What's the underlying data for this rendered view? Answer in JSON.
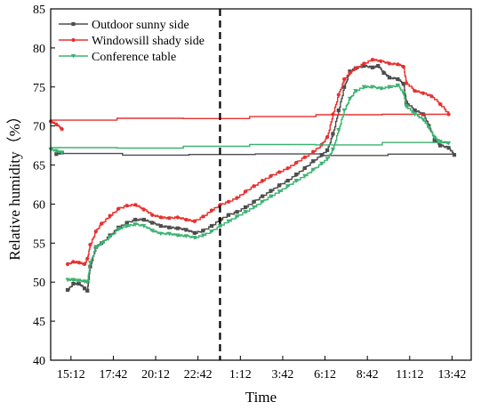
{
  "chart_data": {
    "type": "line",
    "title": "",
    "xlabel": "Time",
    "ylabel": "Relative humidity（%）",
    "ylim": [
      40,
      85
    ],
    "yticks": [
      40,
      45,
      50,
      55,
      60,
      65,
      70,
      75,
      80,
      85
    ],
    "xticks": [
      "15:12",
      "17:42",
      "20:12",
      "22:42",
      "1:12",
      "3:42",
      "6:12",
      "8:42",
      "11:12",
      "13:42"
    ],
    "x_range": [
      "14:00",
      "14:50"
    ],
    "divider_line_at": "0:00",
    "legend_position": "top-left",
    "grid": false,
    "series": [
      {
        "name": "Outdoor sunny side",
        "color": "#4d4d4d",
        "marker": "square",
        "points": [
          [
            "15:00",
            49
          ],
          [
            "15:20",
            49.8
          ],
          [
            "15:40",
            49.8
          ],
          [
            "16:00",
            49.2
          ],
          [
            "16:10",
            48.9
          ],
          [
            "16:20",
            52
          ],
          [
            "16:40",
            54.5
          ],
          [
            "17:00",
            55
          ],
          [
            "17:30",
            56
          ],
          [
            "18:00",
            57
          ],
          [
            "18:30",
            57.6
          ],
          [
            "19:00",
            58
          ],
          [
            "19:30",
            58
          ],
          [
            "20:00",
            57.6
          ],
          [
            "20:30",
            57.2
          ],
          [
            "21:00",
            57
          ],
          [
            "21:30",
            56.9
          ],
          [
            "22:00",
            56.7
          ],
          [
            "22:30",
            56.3
          ],
          [
            "23:00",
            56.6
          ],
          [
            "23:30",
            57.2
          ],
          [
            "0:00",
            58
          ],
          [
            "0:30",
            58.6
          ],
          [
            "1:00",
            59
          ],
          [
            "1:30",
            59.6
          ],
          [
            "2:00",
            60.3
          ],
          [
            "2:30",
            61
          ],
          [
            "3:00",
            61.7
          ],
          [
            "3:30",
            62.4
          ],
          [
            "4:00",
            63
          ],
          [
            "4:30",
            63.8
          ],
          [
            "5:00",
            64.6
          ],
          [
            "5:30",
            65.5
          ],
          [
            "6:00",
            66.3
          ],
          [
            "6:20",
            66.9
          ],
          [
            "6:40",
            69
          ],
          [
            "7:00",
            72
          ],
          [
            "7:20",
            75
          ],
          [
            "7:40",
            77
          ],
          [
            "8:00",
            77.4
          ],
          [
            "8:30",
            77.7
          ],
          [
            "9:00",
            77.5
          ],
          [
            "9:20",
            77.7
          ],
          [
            "9:40",
            76.8
          ],
          [
            "10:00",
            76.2
          ],
          [
            "10:30",
            76
          ],
          [
            "10:50",
            75.4
          ],
          [
            "11:00",
            73
          ],
          [
            "11:30",
            72
          ],
          [
            "12:00",
            71.5
          ],
          [
            "12:20",
            70
          ],
          [
            "12:40",
            68.2
          ],
          [
            "13:00",
            67.5
          ],
          [
            "13:30",
            67.2
          ],
          [
            "13:50",
            66.3
          ],
          [
            "14:20",
            66.4
          ],
          [
            "14:40",
            66.6
          ]
        ]
      },
      {
        "name": "Windowsill shady side",
        "color": "#e8302f",
        "marker": "circle",
        "points": [
          [
            "15:00",
            52.3
          ],
          [
            "15:20",
            52.6
          ],
          [
            "15:40",
            52.5
          ],
          [
            "16:00",
            52.3
          ],
          [
            "16:10",
            53
          ],
          [
            "16:20",
            54.8
          ],
          [
            "16:40",
            56.5
          ],
          [
            "17:00",
            57.5
          ],
          [
            "17:30",
            58.5
          ],
          [
            "18:00",
            59.4
          ],
          [
            "18:30",
            59.8
          ],
          [
            "19:00",
            59.9
          ],
          [
            "19:30",
            59.3
          ],
          [
            "20:00",
            58.6
          ],
          [
            "20:30",
            58.3
          ],
          [
            "21:00",
            58.2
          ],
          [
            "21:30",
            58.3
          ],
          [
            "22:00",
            58
          ],
          [
            "22:30",
            57.8
          ],
          [
            "23:00",
            58.4
          ],
          [
            "23:30",
            59.2
          ],
          [
            "0:00",
            59.9
          ],
          [
            "0:30",
            60.3
          ],
          [
            "1:00",
            60.8
          ],
          [
            "1:30",
            61.6
          ],
          [
            "2:00",
            62.3
          ],
          [
            "2:30",
            63
          ],
          [
            "3:00",
            63.6
          ],
          [
            "3:30",
            64.1
          ],
          [
            "4:00",
            64.6
          ],
          [
            "4:30",
            65.3
          ],
          [
            "5:00",
            66
          ],
          [
            "5:30",
            66.7
          ],
          [
            "6:00",
            67.6
          ],
          [
            "6:20",
            68.6
          ],
          [
            "6:40",
            71.5
          ],
          [
            "7:00",
            74
          ],
          [
            "7:20",
            76
          ],
          [
            "7:40",
            76.8
          ],
          [
            "8:00",
            77.4
          ],
          [
            "8:30",
            78
          ],
          [
            "9:00",
            78.5
          ],
          [
            "9:30",
            78.3
          ],
          [
            "10:00",
            78
          ],
          [
            "10:30",
            77.9
          ],
          [
            "10:50",
            77.6
          ],
          [
            "11:00",
            75.5
          ],
          [
            "11:30",
            74.5
          ],
          [
            "12:00",
            74.2
          ],
          [
            "12:30",
            73.8
          ],
          [
            "13:00",
            72.8
          ],
          [
            "13:30",
            71.5
          ],
          [
            "14:00",
            70.6
          ],
          [
            "14:20",
            70.2
          ],
          [
            "14:40",
            69.6
          ]
        ]
      },
      {
        "name": "Conference table",
        "color": "#3cb371",
        "marker": "triangle",
        "points": [
          [
            "15:00",
            50.3
          ],
          [
            "15:20",
            50.3
          ],
          [
            "15:40",
            50.2
          ],
          [
            "16:00",
            50.1
          ],
          [
            "16:10",
            50
          ],
          [
            "16:20",
            52.5
          ],
          [
            "16:40",
            54.5
          ],
          [
            "17:00",
            55
          ],
          [
            "17:30",
            55.8
          ],
          [
            "18:00",
            56.8
          ],
          [
            "18:30",
            57.2
          ],
          [
            "19:00",
            57.4
          ],
          [
            "19:30",
            57.2
          ],
          [
            "20:00",
            56.6
          ],
          [
            "20:30",
            56.2
          ],
          [
            "21:00",
            56.2
          ],
          [
            "21:30",
            56
          ],
          [
            "22:00",
            55.9
          ],
          [
            "22:30",
            55.7
          ],
          [
            "23:00",
            56
          ],
          [
            "23:30",
            56.5
          ],
          [
            "0:00",
            57.2
          ],
          [
            "0:30",
            57.8
          ],
          [
            "1:00",
            58.4
          ],
          [
            "1:30",
            59
          ],
          [
            "2:00",
            59.6
          ],
          [
            "2:30",
            60.3
          ],
          [
            "3:00",
            61
          ],
          [
            "3:30",
            61.6
          ],
          [
            "4:00",
            62.3
          ],
          [
            "4:30",
            63
          ],
          [
            "5:00",
            63.6
          ],
          [
            "5:30",
            64.4
          ],
          [
            "6:00",
            65.2
          ],
          [
            "6:20",
            65.8
          ],
          [
            "6:40",
            67
          ],
          [
            "7:00",
            69.5
          ],
          [
            "7:20",
            72
          ],
          [
            "7:40",
            73.5
          ],
          [
            "8:00",
            74.5
          ],
          [
            "8:30",
            75
          ],
          [
            "9:00",
            75
          ],
          [
            "9:30",
            74.8
          ],
          [
            "10:00",
            75
          ],
          [
            "10:30",
            75.2
          ],
          [
            "10:50",
            74.2
          ],
          [
            "11:00",
            72.5
          ],
          [
            "11:30",
            71.5
          ],
          [
            "12:00",
            70.8
          ],
          [
            "12:20",
            69.8
          ],
          [
            "12:40",
            68.5
          ],
          [
            "13:00",
            68
          ],
          [
            "13:30",
            67.8
          ],
          [
            "14:00",
            67
          ],
          [
            "14:20",
            66.8
          ],
          [
            "14:40",
            66.6
          ]
        ]
      }
    ]
  }
}
